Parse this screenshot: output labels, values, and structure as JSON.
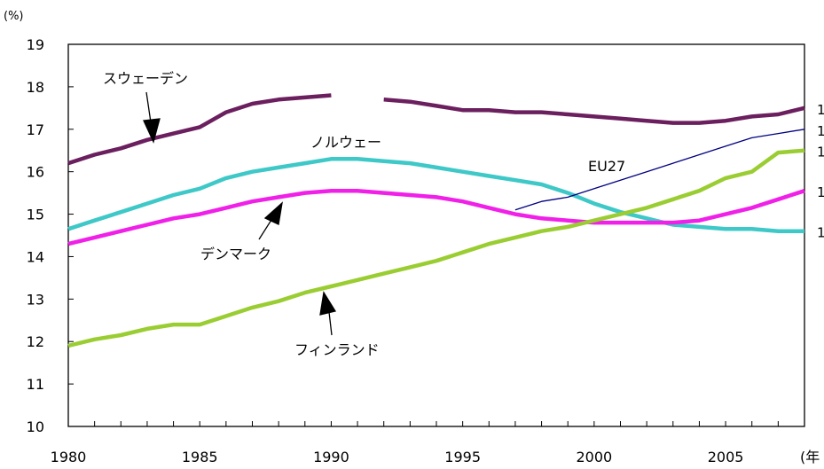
{
  "chart_data": {
    "type": "line",
    "y_unit_label": "(%)",
    "x_unit_label": "(年",
    "xlim": [
      1980,
      2008
    ],
    "ylim": [
      10,
      19
    ],
    "x_ticks": [
      1980,
      1985,
      1990,
      1995,
      2000,
      2005
    ],
    "y_ticks": [
      10,
      11,
      12,
      13,
      14,
      15,
      16,
      17,
      18,
      19
    ],
    "grid": false,
    "x": [
      1980,
      1981,
      1982,
      1983,
      1984,
      1985,
      1986,
      1987,
      1988,
      1989,
      1990,
      1991,
      1992,
      1993,
      1994,
      1995,
      1996,
      1997,
      1998,
      1999,
      2000,
      2001,
      2002,
      2003,
      2004,
      2005,
      2006,
      2007,
      2008
    ],
    "series": [
      {
        "name": "スウェーデン",
        "color": "#6b1f5e",
        "width": 4.5,
        "values": [
          16.2,
          16.4,
          16.55,
          16.75,
          16.9,
          17.05,
          17.4,
          17.6,
          17.7,
          17.75,
          17.8,
          null,
          17.7,
          17.65,
          17.55,
          17.45,
          17.45,
          17.4,
          17.4,
          17.35,
          17.3,
          17.25,
          17.2,
          17.15,
          17.15,
          17.2,
          17.3,
          17.35,
          17.5
        ]
      },
      {
        "name": "ノルウェー",
        "color": "#3ec8c8",
        "width": 4.5,
        "values": [
          14.65,
          14.85,
          15.05,
          15.25,
          15.45,
          15.6,
          15.85,
          16.0,
          16.1,
          16.2,
          16.3,
          16.3,
          16.25,
          16.2,
          16.1,
          16.0,
          15.9,
          15.8,
          15.7,
          15.5,
          15.25,
          15.05,
          14.9,
          14.75,
          14.7,
          14.65,
          14.65,
          14.6,
          14.6
        ]
      },
      {
        "name": "デンマーク",
        "color": "#f020e8",
        "width": 4.5,
        "values": [
          14.3,
          14.45,
          14.6,
          14.75,
          14.9,
          15.0,
          15.15,
          15.3,
          15.4,
          15.5,
          15.55,
          15.55,
          15.5,
          15.45,
          15.4,
          15.3,
          15.15,
          15.0,
          14.9,
          14.85,
          14.8,
          14.8,
          14.8,
          14.8,
          14.85,
          15.0,
          15.15,
          15.35,
          15.55
        ]
      },
      {
        "name": "フィンランド",
        "color": "#9acd32",
        "width": 4.5,
        "values": [
          11.9,
          12.05,
          12.15,
          12.3,
          12.4,
          12.4,
          12.6,
          12.8,
          12.95,
          13.15,
          13.3,
          13.45,
          13.6,
          13.75,
          13.9,
          14.1,
          14.3,
          14.45,
          14.6,
          14.7,
          14.85,
          15.0,
          15.15,
          15.35,
          15.55,
          15.85,
          16.0,
          16.45,
          16.5
        ]
      },
      {
        "name": "EU27",
        "color": "#000080",
        "width": 1.3,
        "values": [
          null,
          null,
          null,
          null,
          null,
          null,
          null,
          null,
          null,
          null,
          null,
          null,
          null,
          null,
          null,
          null,
          null,
          15.1,
          15.3,
          15.4,
          15.6,
          15.8,
          16.0,
          16.2,
          16.4,
          16.6,
          16.8,
          16.9,
          17.0
        ]
      }
    ],
    "end_labels": [
      "1",
      "1",
      "1",
      "1",
      "1"
    ],
    "annotations": {
      "sweden": "スウェーデン",
      "norway": "ノルウェー",
      "eu27": "EU27",
      "denmark": "デンマーク",
      "finland": "フィンランド"
    }
  }
}
